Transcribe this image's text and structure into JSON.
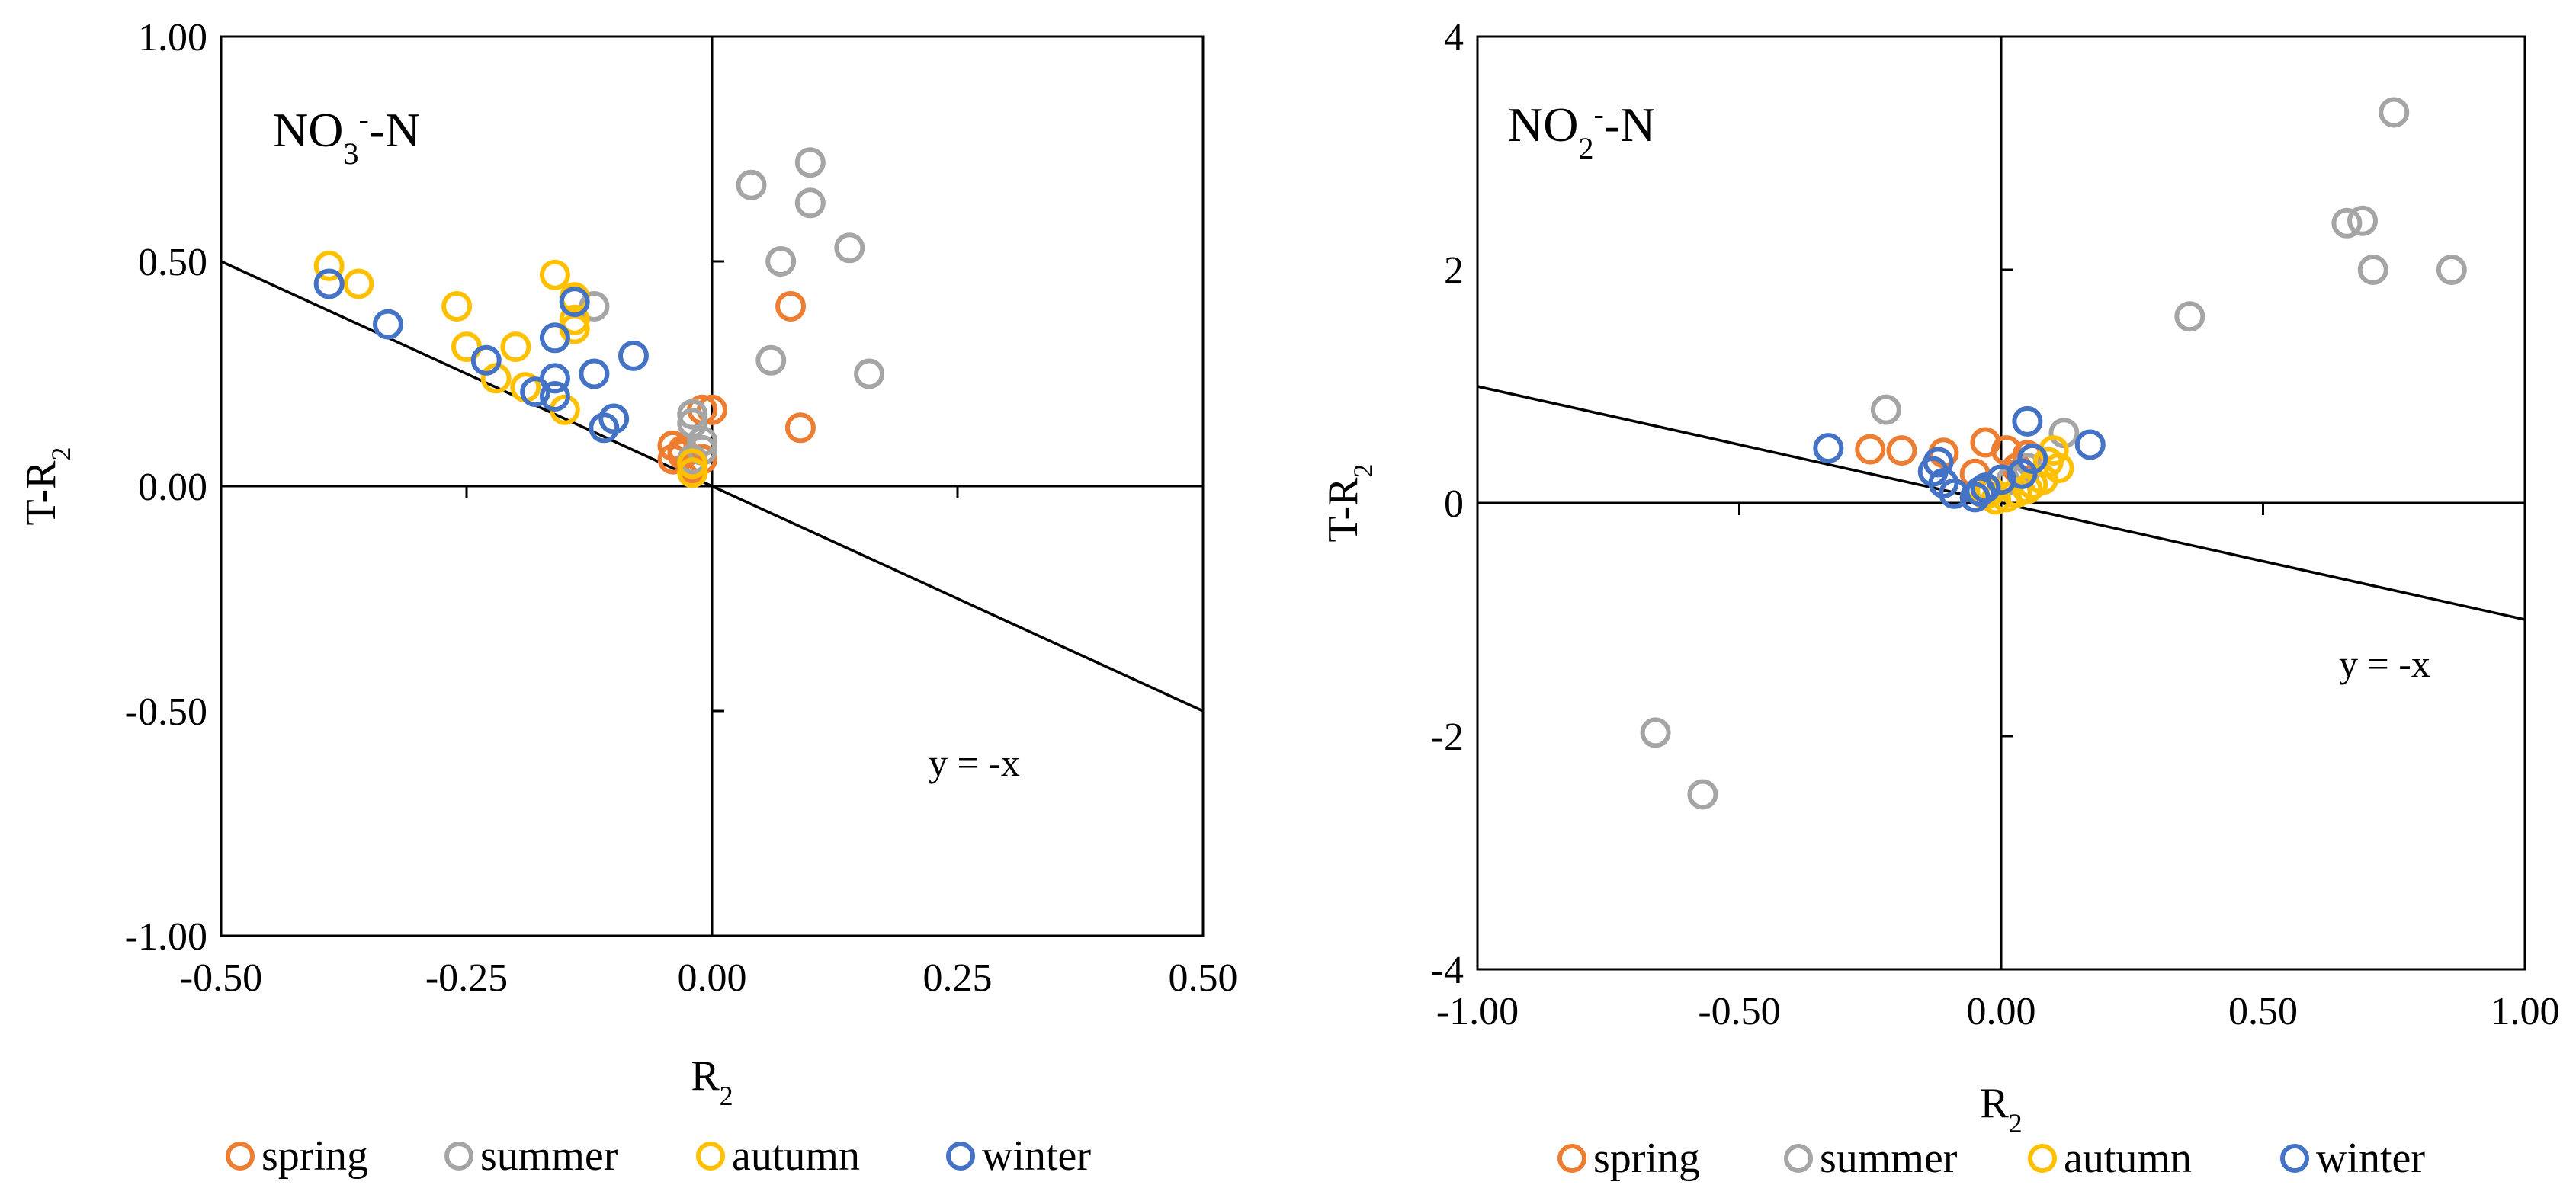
{
  "colors": {
    "spring": "#ED7D31",
    "summer": "#A5A5A5",
    "autumn": "#FFC000",
    "winter": "#4472C4"
  },
  "chart_data": [
    {
      "type": "scatter",
      "annotation": {
        "base": "NO",
        "sub": "3",
        "sup": "-",
        "tail": "-N"
      },
      "equation_label": "y = -x",
      "xlabel": {
        "base": "R",
        "sub": "2"
      },
      "ylabel": {
        "base": "T-R",
        "sub": "2"
      },
      "xlim": [
        -0.5,
        0.5
      ],
      "ylim": [
        -1.0,
        1.0
      ],
      "x_ticks": [
        "-0.50",
        "-0.25",
        "0.00",
        "0.25",
        "0.50"
      ],
      "x_tick_values": [
        -0.5,
        -0.25,
        0,
        0.25,
        0.5
      ],
      "y_ticks": [
        "1.00",
        "0.50",
        "0.00",
        "-0.50",
        "-1.00"
      ],
      "y_tick_values": [
        1.0,
        0.5,
        0,
        -0.5,
        -1.0
      ],
      "reference_line": {
        "slope": -1,
        "intercept": 0
      },
      "legend": [
        "spring",
        "summer",
        "autumn",
        "winter"
      ],
      "legend_position": "bottom",
      "series": [
        {
          "name": "spring",
          "points": [
            [
              0.08,
              0.4
            ],
            [
              0.09,
              0.13
            ],
            [
              -0.01,
              0.17
            ],
            [
              0.0,
              0.17
            ],
            [
              -0.04,
              0.09
            ],
            [
              -0.03,
              0.07
            ],
            [
              -0.04,
              0.06
            ],
            [
              -0.02,
              0.05
            ],
            [
              -0.02,
              0.04
            ],
            [
              -0.01,
              0.06
            ],
            [
              -0.03,
              0.08
            ]
          ]
        },
        {
          "name": "summer",
          "points": [
            [
              0.04,
              0.67
            ],
            [
              0.1,
              0.72
            ],
            [
              0.1,
              0.63
            ],
            [
              0.07,
              0.5
            ],
            [
              0.14,
              0.53
            ],
            [
              0.06,
              0.28
            ],
            [
              0.16,
              0.25
            ],
            [
              -0.12,
              0.4
            ],
            [
              -0.02,
              0.16
            ],
            [
              -0.02,
              0.14
            ],
            [
              -0.01,
              0.1
            ],
            [
              -0.01,
              0.08
            ],
            [
              -0.02,
              0.06
            ]
          ]
        },
        {
          "name": "autumn",
          "points": [
            [
              -0.39,
              0.49
            ],
            [
              -0.36,
              0.45
            ],
            [
              -0.26,
              0.4
            ],
            [
              -0.25,
              0.31
            ],
            [
              -0.2,
              0.31
            ],
            [
              -0.22,
              0.24
            ],
            [
              -0.19,
              0.22
            ],
            [
              -0.16,
              0.47
            ],
            [
              -0.14,
              0.42
            ],
            [
              -0.14,
              0.35
            ],
            [
              -0.14,
              0.37
            ],
            [
              -0.15,
              0.17
            ],
            [
              -0.02,
              0.03
            ],
            [
              -0.02,
              0.05
            ]
          ]
        },
        {
          "name": "winter",
          "points": [
            [
              -0.39,
              0.45
            ],
            [
              -0.33,
              0.36
            ],
            [
              -0.23,
              0.28
            ],
            [
              -0.18,
              0.21
            ],
            [
              -0.16,
              0.33
            ],
            [
              -0.16,
              0.24
            ],
            [
              -0.16,
              0.2
            ],
            [
              -0.14,
              0.41
            ],
            [
              -0.12,
              0.25
            ],
            [
              -0.11,
              0.13
            ],
            [
              -0.1,
              0.15
            ],
            [
              -0.08,
              0.29
            ]
          ]
        }
      ]
    },
    {
      "type": "scatter",
      "annotation": {
        "base": "NO",
        "sub": "2",
        "sup": "-",
        "tail": "-N"
      },
      "equation_label": "y = -x",
      "xlabel": {
        "base": "R",
        "sub": "2"
      },
      "ylabel": {
        "base": "T-R",
        "sub": "2"
      },
      "xlim": [
        -1.0,
        1.0
      ],
      "ylim": [
        -4,
        4
      ],
      "x_ticks": [
        "-1.00",
        "-0.50",
        "0.00",
        "0.50",
        "1.00"
      ],
      "x_tick_values": [
        -1.0,
        -0.5,
        0,
        0.5,
        1.0
      ],
      "y_ticks": [
        "4",
        "2",
        "0",
        "-2",
        "-4"
      ],
      "y_tick_values": [
        4,
        2,
        0,
        -2,
        -4
      ],
      "reference_line": {
        "slope": -1,
        "intercept": 0
      },
      "legend": [
        "spring",
        "summer",
        "autumn",
        "winter"
      ],
      "legend_position": "bottom",
      "series": [
        {
          "name": "spring",
          "points": [
            [
              -0.25,
              0.46
            ],
            [
              -0.19,
              0.45
            ],
            [
              -0.11,
              0.43
            ],
            [
              -0.03,
              0.52
            ],
            [
              0.01,
              0.45
            ],
            [
              0.05,
              0.41
            ],
            [
              -0.05,
              0.25
            ],
            [
              0.03,
              0.3
            ]
          ]
        },
        {
          "name": "summer",
          "points": [
            [
              0.75,
              3.35
            ],
            [
              0.66,
              2.4
            ],
            [
              0.69,
              2.42
            ],
            [
              0.71,
              2.0
            ],
            [
              0.86,
              2.0
            ],
            [
              0.36,
              1.6
            ],
            [
              0.12,
              0.6
            ],
            [
              -0.22,
              0.8
            ],
            [
              -0.66,
              -1.97
            ],
            [
              -0.57,
              -2.5
            ],
            [
              0.05,
              0.3
            ],
            [
              0.02,
              0.2
            ]
          ]
        },
        {
          "name": "autumn",
          "points": [
            [
              0.1,
              0.45
            ],
            [
              0.11,
              0.3
            ],
            [
              0.06,
              0.16
            ],
            [
              0.03,
              0.09
            ],
            [
              0.01,
              0.05
            ],
            [
              -0.01,
              0.03
            ],
            [
              -0.02,
              0.1
            ],
            [
              0.08,
              0.2
            ],
            [
              0.05,
              0.12
            ],
            [
              -0.03,
              0.07
            ],
            [
              0.09,
              0.35
            ]
          ]
        },
        {
          "name": "winter",
          "points": [
            [
              -0.33,
              0.47
            ],
            [
              -0.13,
              0.27
            ],
            [
              -0.11,
              0.17
            ],
            [
              -0.09,
              0.08
            ],
            [
              -0.05,
              0.05
            ],
            [
              -0.04,
              0.1
            ],
            [
              -0.03,
              0.13
            ],
            [
              0.04,
              0.25
            ],
            [
              0.05,
              0.7
            ],
            [
              0.06,
              0.38
            ],
            [
              0.17,
              0.5
            ],
            [
              -0.12,
              0.35
            ],
            [
              0.0,
              0.2
            ]
          ]
        }
      ]
    }
  ]
}
